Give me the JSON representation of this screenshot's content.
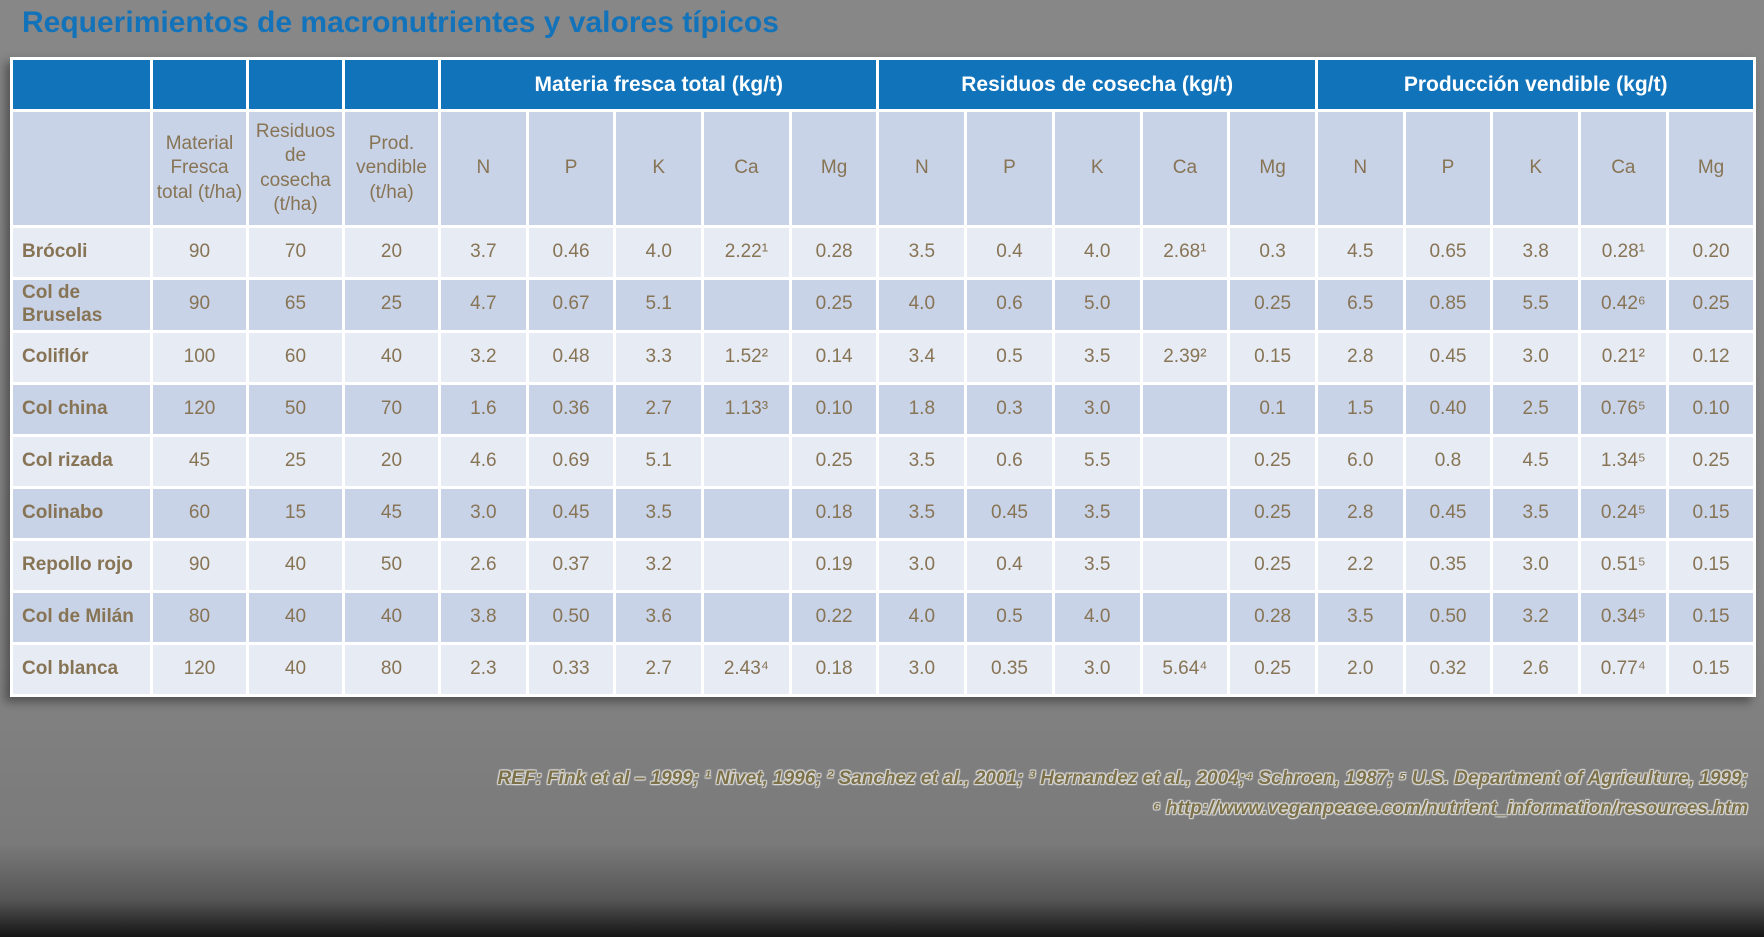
{
  "title": "Requerimientos de macronutrientes y valores típicos",
  "colors": {
    "title_blue": "#1273bb",
    "header_blue": "#1173ba",
    "row_light": "#e7ebf4",
    "row_dark": "#c9d3e7",
    "cell_text": "#877455",
    "background_gray": "#838383",
    "footer_text": "#7c7148"
  },
  "table": {
    "group_headers": [
      {
        "label": "",
        "span": 1
      },
      {
        "label": "",
        "span": 1
      },
      {
        "label": "",
        "span": 1
      },
      {
        "label": "",
        "span": 1
      },
      {
        "label": "Materia fresca total (kg/t)",
        "span": 5
      },
      {
        "label": "Residuos de cosecha (kg/t)",
        "span": 5
      },
      {
        "label": "Producción vendible (kg/t)",
        "span": 5
      }
    ],
    "sub_headers": [
      "",
      "Material Fresca total (t/ha)",
      "Residuos de cosecha (t/ha)",
      "Prod. vendible (t/ha)",
      "N",
      "P",
      "K",
      "Ca",
      "Mg",
      "N",
      "P",
      "K",
      "Ca",
      "Mg",
      "N",
      "P",
      "K",
      "Ca",
      "Mg"
    ],
    "rows": [
      {
        "name": "Brócoli",
        "values": [
          "90",
          "70",
          "20",
          "3.7",
          "0.46",
          "4.0",
          "2.22¹",
          "0.28",
          "3.5",
          "0.4",
          "4.0",
          "2.68¹",
          "0.3",
          "4.5",
          "0.65",
          "3.8",
          "0.28¹",
          "0.20"
        ]
      },
      {
        "name": "Col de Bruselas",
        "values": [
          "90",
          "65",
          "25",
          "4.7",
          "0.67",
          "5.1",
          "",
          "0.25",
          "4.0",
          "0.6",
          "5.0",
          "",
          "0.25",
          "6.5",
          "0.85",
          "5.5",
          "0.42⁶",
          "0.25"
        ]
      },
      {
        "name": "Coliflór",
        "values": [
          "100",
          "60",
          "40",
          "3.2",
          "0.48",
          "3.3",
          "1.52²",
          "0.14",
          "3.4",
          "0.5",
          "3.5",
          "2.39²",
          "0.15",
          "2.8",
          "0.45",
          "3.0",
          "0.21²",
          "0.12"
        ]
      },
      {
        "name": "Col china",
        "values": [
          "120",
          "50",
          "70",
          "1.6",
          "0.36",
          "2.7",
          "1.13³",
          "0.10",
          "1.8",
          "0.3",
          "3.0",
          "",
          "0.1",
          "1.5",
          "0.40",
          "2.5",
          "0.76⁵",
          "0.10"
        ]
      },
      {
        "name": "Col rizada",
        "values": [
          "45",
          "25",
          "20",
          "4.6",
          "0.69",
          "5.1",
          "",
          "0.25",
          "3.5",
          "0.6",
          "5.5",
          "",
          "0.25",
          "6.0",
          "0.8",
          "4.5",
          "1.34⁵",
          "0.25"
        ]
      },
      {
        "name": "Colinabo",
        "values": [
          "60",
          "15",
          "45",
          "3.0",
          "0.45",
          "3.5",
          "",
          "0.18",
          "3.5",
          "0.45",
          "3.5",
          "",
          "0.25",
          "2.8",
          "0.45",
          "3.5",
          "0.24⁵",
          "0.15"
        ]
      },
      {
        "name": "Repollo rojo",
        "values": [
          "90",
          "40",
          "50",
          "2.6",
          "0.37",
          "3.2",
          "",
          "0.19",
          "3.0",
          "0.4",
          "3.5",
          "",
          "0.25",
          "2.2",
          "0.35",
          "3.0",
          "0.51⁵",
          "0.15"
        ]
      },
      {
        "name": "Col de Milán",
        "values": [
          "80",
          "40",
          "40",
          "3.8",
          "0.50",
          "3.6",
          "",
          "0.22",
          "4.0",
          "0.5",
          "4.0",
          "",
          "0.28",
          "3.5",
          "0.50",
          "3.2",
          "0.34⁵",
          "0.15"
        ]
      },
      {
        "name": "Col blanca",
        "values": [
          "120",
          "40",
          "80",
          "2.3",
          "0.33",
          "2.7",
          "2.43⁴",
          "0.18",
          "3.0",
          "0.35",
          "3.0",
          "5.64⁴",
          "0.25",
          "2.0",
          "0.32",
          "2.6",
          "0.77⁴",
          "0.15"
        ]
      }
    ]
  },
  "footer": {
    "line1": "REF: Fink et al – 1999; ¹ Nivet, 1996; ² Sanchez et al., 2001; ³ Hernandez et al., 2004;⁴ Schroen, 1987; ⁵ U.S. Department of Agriculture, 1999;",
    "line2": "⁶ http://www.veganpeace.com/nutrient_information/resources.htm"
  }
}
